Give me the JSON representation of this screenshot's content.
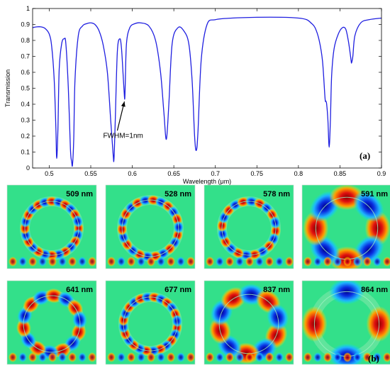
{
  "chart_data": {
    "type": "line",
    "xlabel": "Wavelength (μm)",
    "ylabel": "Transmission",
    "xlim": [
      0.48,
      0.9
    ],
    "ylim": [
      0,
      1
    ],
    "x_ticks": [
      "0.5",
      "0.55",
      "0.6",
      "0.65",
      "0.7",
      "0.75",
      "0.8",
      "0.85",
      "0.9"
    ],
    "y_ticks": [
      "0",
      "0.1",
      "0.2",
      "0.3",
      "0.4",
      "0.5",
      "0.6",
      "0.7",
      "0.8",
      "0.9",
      "1"
    ],
    "grid": false,
    "series_color": "#1f1fe0",
    "series": [
      {
        "x": [
          0.48,
          0.485,
          0.49,
          0.495,
          0.5,
          0.503,
          0.506,
          0.508,
          0.509,
          0.5105,
          0.512,
          0.515,
          0.518,
          0.52,
          0.523,
          0.5255,
          0.527,
          0.528,
          0.5295,
          0.531,
          0.535,
          0.54,
          0.545,
          0.55,
          0.555,
          0.56,
          0.565,
          0.57,
          0.574,
          0.577,
          0.578,
          0.5795,
          0.582,
          0.585,
          0.587,
          0.589,
          0.5905,
          0.591,
          0.5915,
          0.593,
          0.597,
          0.603,
          0.61,
          0.62,
          0.628,
          0.634,
          0.638,
          0.641,
          0.644,
          0.648,
          0.655,
          0.662,
          0.668,
          0.672,
          0.675,
          0.677,
          0.679,
          0.683,
          0.69,
          0.7,
          0.72,
          0.75,
          0.78,
          0.8,
          0.81,
          0.815,
          0.82,
          0.825,
          0.829,
          0.832,
          0.833,
          0.834,
          0.8355,
          0.837,
          0.8385,
          0.84,
          0.843,
          0.848,
          0.853,
          0.857,
          0.86,
          0.862,
          0.8635,
          0.864,
          0.8655,
          0.868,
          0.875,
          0.885,
          0.9
        ],
        "y": [
          0.88,
          0.885,
          0.885,
          0.875,
          0.84,
          0.76,
          0.55,
          0.25,
          0.06,
          0.25,
          0.62,
          0.78,
          0.81,
          0.78,
          0.5,
          0.12,
          0.04,
          0.02,
          0.18,
          0.55,
          0.83,
          0.89,
          0.905,
          0.91,
          0.9,
          0.86,
          0.77,
          0.6,
          0.3,
          0.08,
          0.06,
          0.3,
          0.73,
          0.81,
          0.75,
          0.58,
          0.45,
          0.44,
          0.52,
          0.78,
          0.88,
          0.905,
          0.91,
          0.89,
          0.8,
          0.6,
          0.35,
          0.18,
          0.4,
          0.78,
          0.88,
          0.86,
          0.78,
          0.55,
          0.2,
          0.11,
          0.22,
          0.68,
          0.9,
          0.93,
          0.94,
          0.945,
          0.945,
          0.94,
          0.93,
          0.91,
          0.88,
          0.8,
          0.67,
          0.44,
          0.42,
          0.4,
          0.3,
          0.13,
          0.3,
          0.58,
          0.75,
          0.84,
          0.88,
          0.87,
          0.8,
          0.73,
          0.67,
          0.66,
          0.7,
          0.83,
          0.91,
          0.93,
          0.94
        ]
      }
    ],
    "annotations": [
      {
        "text": "FWHM=1nm",
        "x": 0.5905,
        "y": 0.43
      }
    ],
    "panel_label_top": "(a)",
    "panel_label_bottom": "(b)"
  },
  "field_maps": [
    {
      "label": "509 nm",
      "lobes": 12,
      "phase": 0.0,
      "scale": 1.0
    },
    {
      "label": "528 nm",
      "lobes": 11,
      "phase": 0.25,
      "scale": 1.05
    },
    {
      "label": "578 nm",
      "lobes": 10,
      "phase": 0.1,
      "scale": 1.0
    },
    {
      "label": "591 nm",
      "lobes": 4,
      "phase": 0.0,
      "scale": 1.15
    },
    {
      "label": "641 nm",
      "lobes": 7,
      "phase": 0.3,
      "scale": 1.05
    },
    {
      "label": "677 nm",
      "lobes": 12,
      "phase": 0.15,
      "scale": 1.0
    },
    {
      "label": "837 nm",
      "lobes": 5,
      "phase": 0.4,
      "scale": 1.1
    },
    {
      "label": "864 nm",
      "lobes": 2,
      "phase": 0.0,
      "scale": 1.2
    }
  ]
}
